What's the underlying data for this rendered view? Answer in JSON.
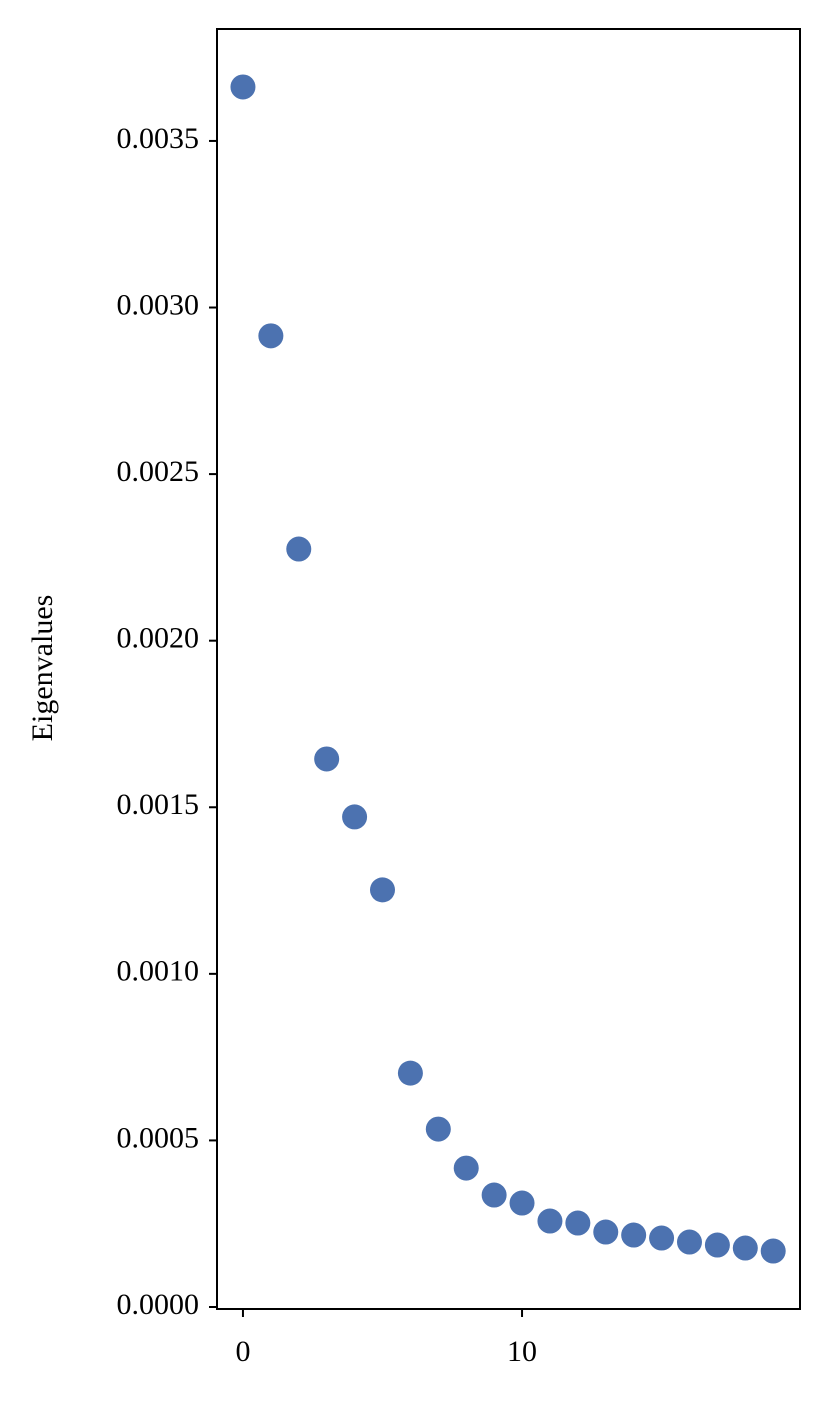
{
  "chart_data": {
    "type": "scatter",
    "ylabel": "Eigenvalues",
    "x": [
      0,
      1,
      2,
      3,
      4,
      5,
      6,
      7,
      8,
      9,
      10,
      11,
      12,
      13,
      14,
      15,
      16,
      17,
      18,
      19
    ],
    "series": [
      {
        "color": "#4c72b0",
        "values": [
          0.003662,
          0.002915,
          0.002275,
          0.001645,
          0.001471,
          0.001252,
          0.000702,
          0.000534,
          0.000417,
          0.000336,
          0.000312,
          0.000258,
          0.000252,
          0.000225,
          0.000216,
          0.000207,
          0.000195,
          0.000186,
          0.000177,
          0.000168
        ]
      }
    ],
    "xlim": [
      -0.93,
      19.96
    ],
    "xticks": [
      0,
      10
    ],
    "ylim": [
      -6e-06,
      0.003836
    ],
    "yticks": [
      {
        "value": 0,
        "label": "0.0000"
      },
      {
        "value": 0.0005,
        "label": "0.0005"
      },
      {
        "value": 0.001,
        "label": "0.0010"
      },
      {
        "value": 0.0015,
        "label": "0.0015"
      },
      {
        "value": 0.002,
        "label": "0.0020"
      },
      {
        "value": 0.0025,
        "label": "0.0025"
      },
      {
        "value": 0.003,
        "label": "0.0030"
      },
      {
        "value": 0.0035,
        "label": "0.0035"
      }
    ],
    "grid": false
  }
}
